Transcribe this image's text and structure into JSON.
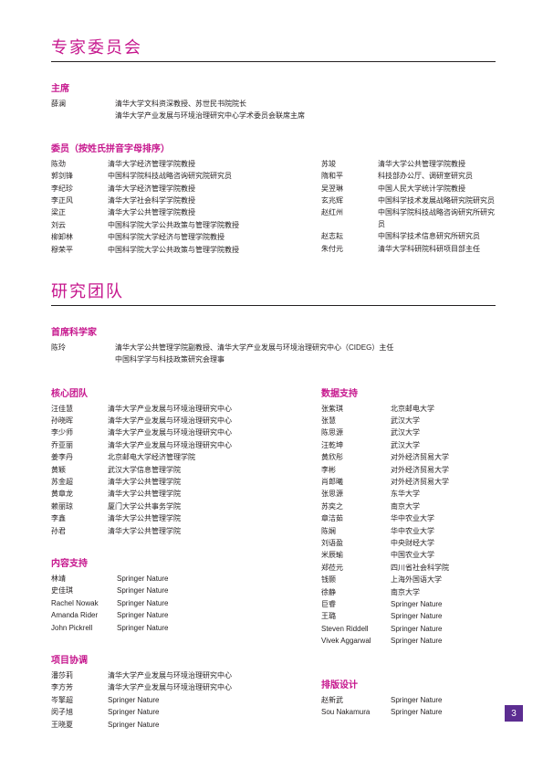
{
  "colors": {
    "accent_pink": "#c6168d",
    "footer_purple": "#5c2d91",
    "text": "#231f20",
    "background": "#ffffff"
  },
  "page_number": "3",
  "sections": {
    "expert_committee": {
      "title": "专家委员会",
      "chair": {
        "heading": "主席",
        "name": "薛澜",
        "aff1": "清华大学文科资深教授、苏世民书院院长",
        "aff2": "清华大学产业发展与环境治理研究中心学术委员会联席主席"
      },
      "members": {
        "heading": "委员（按姓氏拼音字母排序）",
        "left": [
          {
            "name": "陈劲",
            "aff": "清华大学经济管理学院教授"
          },
          {
            "name": "郭剑锋",
            "aff": "中国科学院科技战略咨询研究院研究员"
          },
          {
            "name": "李纪珍",
            "aff": "清华大学经济管理学院教授"
          },
          {
            "name": "李正风",
            "aff": "清华大学社会科学学院教授"
          },
          {
            "name": "梁正",
            "aff": "清华大学公共管理学院教授"
          },
          {
            "name": "刘云",
            "aff": "中国科学院大学公共政策与管理学院教授"
          },
          {
            "name": "柳卸林",
            "aff": "中国科学院大学经济与管理学院教授"
          },
          {
            "name": "穆荣平",
            "aff": "中国科学院大学公共政策与管理学院教授"
          }
        ],
        "right": [
          {
            "name": "苏竣",
            "aff": "清华大学公共管理学院教授"
          },
          {
            "name": "隋和平",
            "aff": "科技部办公厅、调研室研究员"
          },
          {
            "name": "吴翌琳",
            "aff": "中国人民大学统计学院教授"
          },
          {
            "name": "玄兆辉",
            "aff": "中国科学技术发展战略研究院研究员"
          },
          {
            "name": "赵红州",
            "aff": "中国科学院科技战略咨询研究所研究员"
          },
          {
            "name": "赵志耘",
            "aff": "中国科学技术信息研究所研究员"
          },
          {
            "name": "朱付元",
            "aff": "清华大学科研院科研项目部主任"
          }
        ]
      }
    },
    "research_team": {
      "title": "研究团队",
      "lead": {
        "heading": "首席科学家",
        "name": "陈玲",
        "aff1": "清华大学公共管理学院副教授、清华大学产业发展与环境治理研究中心（CIDEG）主任",
        "aff2": "中国科学学与科技政策研究会理事"
      },
      "core": {
        "heading": "核心团队",
        "rows": [
          {
            "name": "汪佳慧",
            "aff": "清华大学产业发展与环境治理研究中心"
          },
          {
            "name": "孙晓晖",
            "aff": "清华大学产业发展与环境治理研究中心"
          },
          {
            "name": "李少师",
            "aff": "清华大学产业发展与环境治理研究中心"
          },
          {
            "name": "乔亚丽",
            "aff": "清华大学产业发展与环境治理研究中心"
          },
          {
            "name": "姜李丹",
            "aff": "北京邮电大学经济管理学院"
          },
          {
            "name": "黄颖",
            "aff": "武汉大学信息管理学院"
          },
          {
            "name": "苏金超",
            "aff": "清华大学公共管理学院"
          },
          {
            "name": "黄章龙",
            "aff": "清华大学公共管理学院"
          },
          {
            "name": "赖丽琼",
            "aff": "厦门大学公共事务学院"
          },
          {
            "name": "李鑫",
            "aff": "清华大学公共管理学院"
          },
          {
            "name": "孙君",
            "aff": "清华大学公共管理学院"
          }
        ]
      },
      "data_support": {
        "heading": "数据支持",
        "rows": [
          {
            "name": "张紫琪",
            "aff": "北京邮电大学"
          },
          {
            "name": "张慧",
            "aff": "武汉大学"
          },
          {
            "name": "陈思源",
            "aff": "武汉大学"
          },
          {
            "name": "汪乾坤",
            "aff": "武汉大学"
          },
          {
            "name": "黄欣彤",
            "aff": "对外经济贸易大学"
          },
          {
            "name": "李彬",
            "aff": "对外经济贸易大学"
          },
          {
            "name": "肖郎曦",
            "aff": "对外经济贸易大学"
          },
          {
            "name": "张思源",
            "aff": "东华大学"
          },
          {
            "name": "苏奕之",
            "aff": "南京大学"
          },
          {
            "name": "章洁茹",
            "aff": "华中农业大学"
          },
          {
            "name": "陈娴",
            "aff": "华中农业大学"
          },
          {
            "name": "刘语盈",
            "aff": "中央财经大学"
          },
          {
            "name": "米辰瑜",
            "aff": "中国农业大学"
          },
          {
            "name": "郑莅元",
            "aff": "四川省社会科学院"
          },
          {
            "name": "钱颢",
            "aff": "上海外国语大学"
          },
          {
            "name": "徐静",
            "aff": "南京大学"
          },
          {
            "name": "巨睿",
            "aff": "Springer Nature"
          },
          {
            "name": "王璐",
            "aff": "Springer Nature"
          },
          {
            "name": "Steven Riddell",
            "aff": "Springer Nature"
          },
          {
            "name": "Vivek Aggarwal",
            "aff": "Springer Nature"
          }
        ]
      },
      "content_support": {
        "heading": "内容支持",
        "rows": [
          {
            "name": "林靖",
            "aff": "Springer Nature"
          },
          {
            "name": "史佳琪",
            "aff": "Springer Nature"
          },
          {
            "name": "Rachel Nowak",
            "aff": "Springer Nature"
          },
          {
            "name": "Amanda Rider",
            "aff": "Springer Nature"
          },
          {
            "name": "John Pickrell",
            "aff": "Springer Nature"
          }
        ]
      },
      "project_coord": {
        "heading": "项目协调",
        "rows": [
          {
            "name": "潘莎莉",
            "aff": "清华大学产业发展与环境治理研究中心"
          },
          {
            "name": "李方芳",
            "aff": "清华大学产业发展与环境治理研究中心"
          },
          {
            "name": "岑擎超",
            "aff": "Springer Nature"
          },
          {
            "name": "闵子旭",
            "aff": "Springer Nature"
          },
          {
            "name": "王晓夏",
            "aff": "Springer Nature"
          }
        ]
      },
      "layout_design": {
        "heading": "排版设计",
        "rows": [
          {
            "name": "赵新武",
            "aff": "Springer Nature"
          },
          {
            "name": "Sou Nakamura",
            "aff": "Springer Nature"
          }
        ]
      }
    }
  }
}
